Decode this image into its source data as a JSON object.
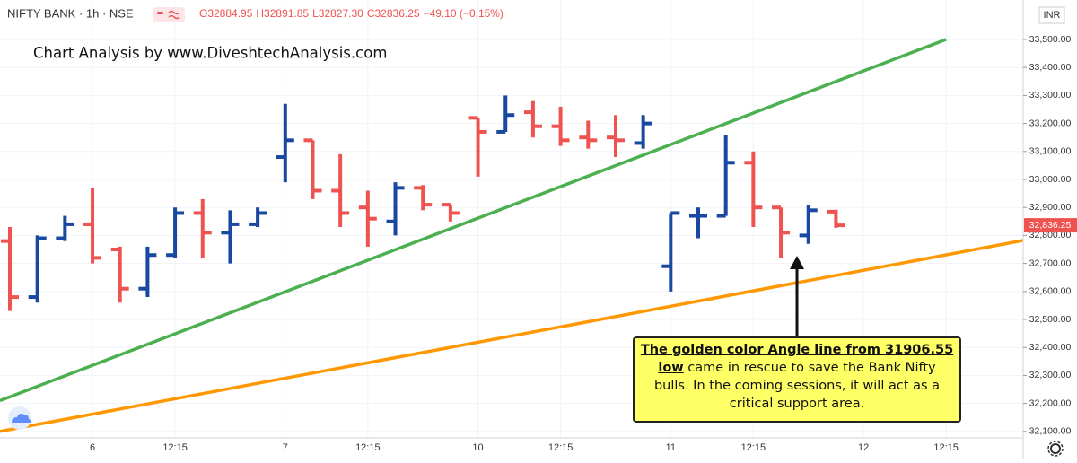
{
  "chart_data": {
    "type": "ohlc",
    "symbol": "NIFTY BANK · 1h · NSE",
    "legend_items": [
      "O32884.95",
      "H32891.85",
      "L32827.30",
      "C32836.25",
      "−49.10 (−0.15%)"
    ],
    "watermark": "Chart Analysis by www.DiveshtechAnalysis.com",
    "currency": "INR",
    "categories": [
      null,
      null,
      null,
      "6",
      null,
      null,
      "12:15",
      null,
      null,
      null,
      "7",
      null,
      null,
      "12:15",
      null,
      null,
      null,
      "10",
      null,
      null,
      "12:15",
      null,
      null,
      null,
      "11",
      null,
      null,
      "12:15",
      null,
      null,
      null,
      "12",
      null,
      null,
      "12:15"
    ],
    "open": [
      32780,
      32580,
      32790,
      32840,
      32750,
      32610,
      32730,
      32880,
      32810,
      32840,
      33080,
      33140,
      32960,
      32900,
      32850,
      32970,
      32910,
      33220,
      33170,
      33240,
      33190,
      33150,
      33150,
      33130,
      32690,
      32870,
      32870,
      33060,
      32900,
      32800,
      32884.95,
      null,
      null,
      null,
      null
    ],
    "high": [
      32830,
      32800,
      32870,
      32970,
      32760,
      32760,
      32900,
      32930,
      32890,
      32900,
      33270,
      33140,
      33090,
      32960,
      32990,
      32980,
      32910,
      33220,
      33300,
      33280,
      33260,
      33210,
      33230,
      33230,
      32880,
      32900,
      33160,
      33100,
      32900,
      32910,
      32891.85,
      null,
      null,
      null,
      null
    ],
    "low": [
      32530,
      32560,
      32780,
      32700,
      32560,
      32580,
      32720,
      32720,
      32700,
      32830,
      32990,
      32930,
      32830,
      32760,
      32800,
      32890,
      32850,
      33010,
      33170,
      33150,
      33120,
      33110,
      33080,
      33110,
      32600,
      32790,
      32870,
      32830,
      32720,
      32770,
      32827.3,
      null,
      null,
      null,
      null
    ],
    "close": [
      32580,
      32790,
      32840,
      32720,
      32610,
      32730,
      32880,
      32810,
      32840,
      32880,
      33140,
      32960,
      32880,
      32860,
      32970,
      32910,
      32880,
      33170,
      33230,
      33190,
      33140,
      33140,
      33140,
      33200,
      32880,
      32870,
      33060,
      32900,
      32810,
      32890,
      32836.25,
      null,
      null,
      null,
      null
    ],
    "up_color": "#1848a0",
    "down_color": "#ef5350",
    "ylim": [
      32077,
      33641
    ],
    "yticks": [
      {
        "value": 32100,
        "label": "32,100.00"
      },
      {
        "value": 32200,
        "label": "32,200.00"
      },
      {
        "value": 32300,
        "label": "32,300.00"
      },
      {
        "value": 32400,
        "label": "32,400.00"
      },
      {
        "value": 32500,
        "label": "32,500.00"
      },
      {
        "value": 32600,
        "label": "32,600.00"
      },
      {
        "value": 32700,
        "label": "32,700.00"
      },
      {
        "value": 32800,
        "label": "32,800.00"
      },
      {
        "value": 32900,
        "label": "32,900.00"
      },
      {
        "value": 33000,
        "label": "33,000.00"
      },
      {
        "value": 33100,
        "label": "33,100.00"
      },
      {
        "value": 33200,
        "label": "33,200.00"
      },
      {
        "value": 33300,
        "label": "33,300.00"
      },
      {
        "value": 33400,
        "label": "33,400.00"
      },
      {
        "value": 33500,
        "label": "33,500.00"
      }
    ],
    "grid": true,
    "last_price": {
      "value": 32836.25,
      "label": "32,836.25"
    },
    "trend_lines": [
      {
        "color": "#4caf50",
        "x": [
          -0.36,
          34
        ],
        "y": [
          32210,
          33500
        ]
      },
      {
        "color": "#ff9800",
        "x": [
          -0.36,
          36.8
        ],
        "y": [
          32100,
          32782
        ]
      }
    ],
    "annotation": {
      "emphasis": "The golden color Angle line from 31906.55 low",
      "text": " came in rescue to save the Bank Nifty bulls. In the coming sessions, it will act as a critical support area."
    }
  }
}
